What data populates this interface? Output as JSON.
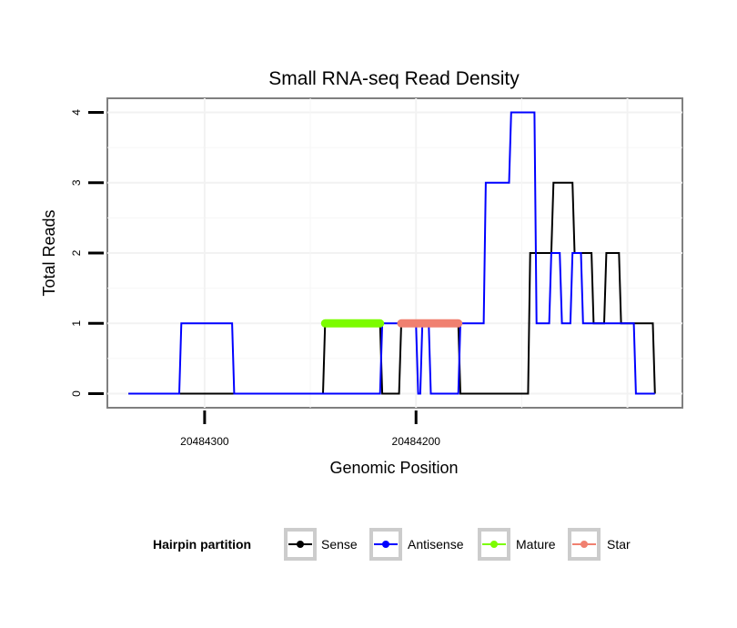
{
  "chart_data": {
    "type": "line",
    "title": "Small RNA-seq Read Density",
    "xlabel": "Genomic Position",
    "ylabel": "Total Reads",
    "x_reversed": true,
    "xlim": [
      20484346,
      20484074
    ],
    "ylim": [
      -0.2,
      4.2
    ],
    "x_ticks": [
      {
        "value": 20484300,
        "label": "20484300"
      },
      {
        "value": 20484200,
        "label": "20484200"
      }
    ],
    "y_ticks": [
      {
        "value": 0,
        "label": "0"
      },
      {
        "value": 1,
        "label": "1"
      },
      {
        "value": 2,
        "label": "2"
      },
      {
        "value": 3,
        "label": "3"
      },
      {
        "value": 4,
        "label": "4"
      }
    ],
    "grid": true,
    "series": [
      {
        "name": "Sense",
        "color": "#000000",
        "x": [
          20484336,
          20484244,
          20484243,
          20484217,
          20484216,
          20484208,
          20484207,
          20484180,
          20484179,
          20484147,
          20484146,
          20484136,
          20484135,
          20484126,
          20484125,
          20484117,
          20484116,
          20484111,
          20484110,
          20484104,
          20484103,
          20484088,
          20484087
        ],
        "y": [
          0,
          0,
          1,
          1,
          0,
          0,
          1,
          1,
          0,
          0,
          2,
          2,
          3,
          3,
          2,
          2,
          1,
          1,
          2,
          2,
          1,
          1,
          0
        ]
      },
      {
        "name": "Antisense",
        "color": "#0000ff",
        "x": [
          20484336,
          20484312,
          20484311,
          20484287,
          20484286,
          20484217,
          20484216,
          20484200,
          20484199,
          20484198,
          20484197,
          20484194,
          20484193,
          20484180,
          20484179,
          20484168,
          20484167,
          20484156,
          20484155,
          20484144,
          20484143,
          20484137,
          20484136,
          20484132,
          20484131,
          20484127,
          20484126,
          20484122,
          20484121,
          20484116,
          20484115,
          20484097,
          20484096,
          20484088,
          20484087
        ],
        "y": [
          0,
          0,
          1,
          1,
          0,
          0,
          1,
          1,
          0,
          0,
          1,
          1,
          0,
          0,
          1,
          1,
          3,
          3,
          4,
          4,
          1,
          1,
          2,
          2,
          1,
          1,
          2,
          2,
          1,
          1,
          1,
          1,
          0,
          0,
          0
        ]
      },
      {
        "name": "Mature",
        "color": "#7cfc00",
        "x": [
          20484243,
          20484217
        ],
        "y": [
          1,
          1
        ]
      },
      {
        "name": "Star",
        "color": "#f08070",
        "x": [
          20484207,
          20484180
        ],
        "y": [
          1,
          1
        ]
      }
    ],
    "legend": {
      "title": "Hairpin partition",
      "position": "bottom",
      "entries": [
        {
          "label": "Sense",
          "color": "#000000"
        },
        {
          "label": "Antisense",
          "color": "#0000ff"
        },
        {
          "label": "Mature",
          "color": "#7cfc00"
        },
        {
          "label": "Star",
          "color": "#f08070"
        }
      ]
    }
  }
}
